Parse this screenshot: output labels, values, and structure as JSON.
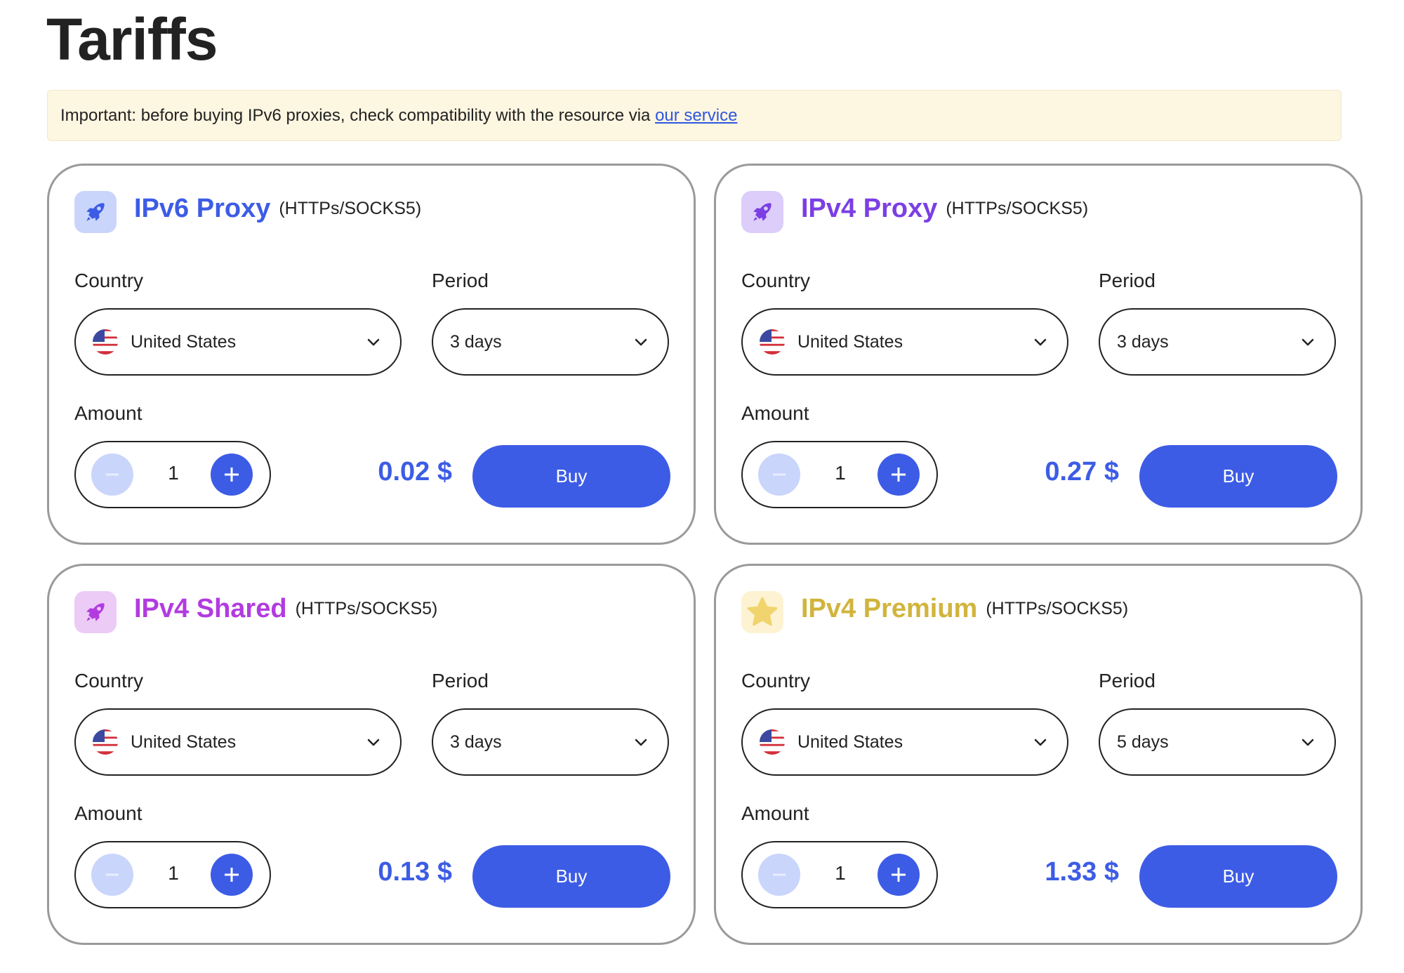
{
  "page": {
    "title": "Tariffs"
  },
  "notice": {
    "text": "Important: before buying IPv6 proxies, check compatibility with the resource via ",
    "link": "our service"
  },
  "labels": {
    "country": "Country",
    "period": "Period",
    "amount": "Amount",
    "buy": "Buy"
  },
  "cards": [
    {
      "name": "IPv6 Proxy",
      "protocol": "(HTTPs/SOCKS5)",
      "icon": "rocket-icon",
      "color": "#3d5ce5",
      "icon_bg": "#c9d5fb",
      "country": "United States",
      "period": "3 days",
      "amount": "1",
      "price": "0.02 $"
    },
    {
      "name": "IPv4 Proxy",
      "protocol": "(HTTPs/SOCKS5)",
      "icon": "rocket-icon",
      "color": "#7b3fe4",
      "icon_bg": "#dccdfb",
      "country": "United States",
      "period": "3 days",
      "amount": "1",
      "price": "0.27 $"
    },
    {
      "name": "IPv4 Shared",
      "protocol": "(HTTPs/SOCKS5)",
      "icon": "rocket-icon",
      "color": "#b23be0",
      "icon_bg": "#eccbf6",
      "country": "United States",
      "period": "3 days",
      "amount": "1",
      "price": "0.13 $"
    },
    {
      "name": "IPv4 Premium",
      "protocol": "(HTTPs/SOCKS5)",
      "icon": "star-icon",
      "color": "#d1b43c",
      "icon_bg": "#fdf3d2",
      "country": "United States",
      "period": "5 days",
      "amount": "1",
      "price": "1.33 $"
    }
  ]
}
